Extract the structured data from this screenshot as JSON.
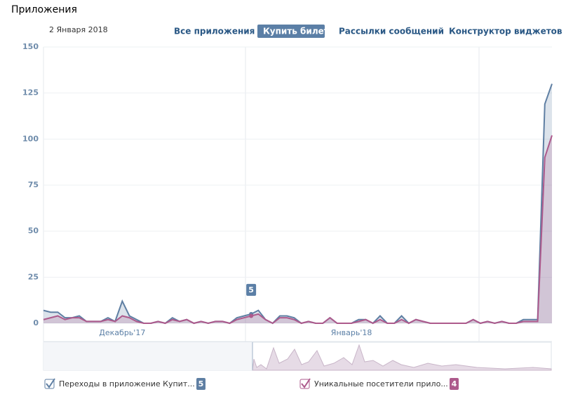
{
  "header": {
    "title": "Приложения",
    "date": "2 Января 2018",
    "tabs": [
      "Все приложения",
      "Купить билет",
      "Рассылки сообщений",
      "Конструктор виджетов"
    ],
    "active_tab": 1
  },
  "chart_data": {
    "type": "line",
    "categories": [
      null,
      null,
      null,
      null,
      null,
      null,
      null,
      null,
      null,
      null,
      null,
      "Декабрь'17",
      null,
      null,
      null,
      null,
      null,
      null,
      null,
      null,
      null,
      null,
      null,
      null,
      null,
      null,
      null,
      null,
      null,
      null,
      null,
      null,
      null,
      null,
      null,
      null,
      null,
      null,
      null,
      null,
      null,
      null,
      null,
      "Январь'18",
      null,
      null,
      null,
      null,
      null,
      null,
      null,
      null,
      null,
      null,
      null,
      null,
      null,
      null,
      null,
      null,
      null,
      null,
      null,
      null,
      null,
      null,
      null,
      null,
      null,
      null,
      null,
      null
    ],
    "series": [
      {
        "name": "Переходы в приложение Купит...",
        "color": "#5f7fa3",
        "values": [
          7,
          6,
          6,
          3,
          3,
          4,
          1,
          1,
          1,
          3,
          1,
          12,
          4,
          2,
          0,
          0,
          1,
          0,
          3,
          1,
          2,
          0,
          1,
          0,
          1,
          1,
          0,
          3,
          4,
          5,
          7,
          2,
          0,
          4,
          4,
          3,
          0,
          1,
          0,
          0,
          3,
          0,
          0,
          0,
          2,
          2,
          0,
          4,
          0,
          0,
          4,
          0,
          2,
          1,
          0,
          0,
          0,
          0,
          0,
          0,
          2,
          0,
          1,
          0,
          1,
          0,
          0,
          2,
          2,
          2,
          119,
          130
        ]
      },
      {
        "name": "Уникальные посетители прило...",
        "color": "#ad5a8c",
        "values": [
          2,
          3,
          4,
          2,
          3,
          3,
          1,
          1,
          1,
          2,
          1,
          4,
          3,
          1,
          0,
          0,
          1,
          0,
          2,
          1,
          2,
          0,
          1,
          0,
          1,
          1,
          0,
          2,
          3,
          4,
          5,
          2,
          0,
          3,
          3,
          2,
          0,
          1,
          0,
          0,
          3,
          0,
          0,
          0,
          1,
          2,
          0,
          2,
          0,
          0,
          2,
          0,
          2,
          1,
          0,
          0,
          0,
          0,
          0,
          0,
          2,
          0,
          1,
          0,
          1,
          0,
          0,
          1,
          1,
          1,
          90,
          102
        ]
      }
    ],
    "highlight_index": 29,
    "ylim": [
      0,
      150
    ],
    "yticks": [
      0,
      25,
      50,
      75,
      100,
      125,
      150
    ],
    "grid": true
  }
}
